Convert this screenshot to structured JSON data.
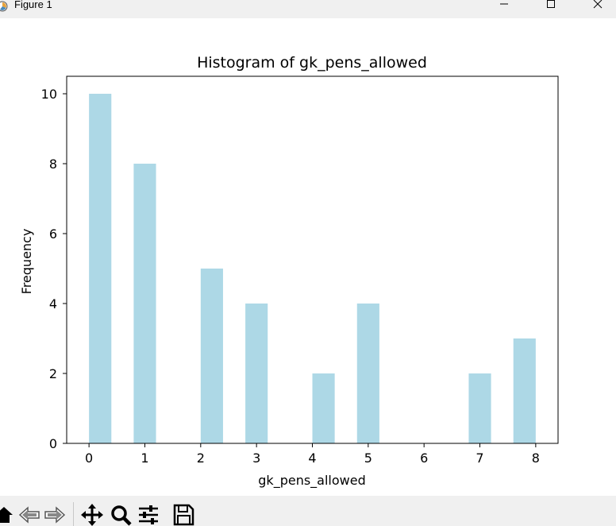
{
  "window": {
    "title": "Figure 1",
    "controls": [
      "minimize-icon",
      "maximize-icon",
      "close-icon"
    ]
  },
  "toolbar": {
    "buttons": [
      "home-icon",
      "back-icon",
      "forward-icon",
      "pan-icon",
      "zoom-icon",
      "configure-subplots-icon",
      "save-icon"
    ]
  },
  "chart_data": {
    "type": "bar",
    "title": "Histogram of gk_pens_allowed",
    "xlabel": "gk_pens_allowed",
    "ylabel": "Frequency",
    "bar_color": "#add8e6",
    "xlim": [
      -0.4,
      8.4
    ],
    "ylim": [
      0,
      10.5
    ],
    "xticks": [
      0,
      1,
      2,
      3,
      4,
      5,
      6,
      7,
      8
    ],
    "yticks": [
      0,
      2,
      4,
      6,
      8,
      10
    ],
    "bins": [
      {
        "x0": 0.0,
        "x1": 0.4,
        "count": 10
      },
      {
        "x0": 0.8,
        "x1": 1.2,
        "count": 8
      },
      {
        "x0": 2.0,
        "x1": 2.4,
        "count": 5
      },
      {
        "x0": 2.8,
        "x1": 3.2,
        "count": 4
      },
      {
        "x0": 4.0,
        "x1": 4.4,
        "count": 2
      },
      {
        "x0": 4.8,
        "x1": 5.2,
        "count": 4
      },
      {
        "x0": 6.8,
        "x1": 7.2,
        "count": 2
      },
      {
        "x0": 7.6,
        "x1": 8.0,
        "count": 3
      }
    ]
  }
}
